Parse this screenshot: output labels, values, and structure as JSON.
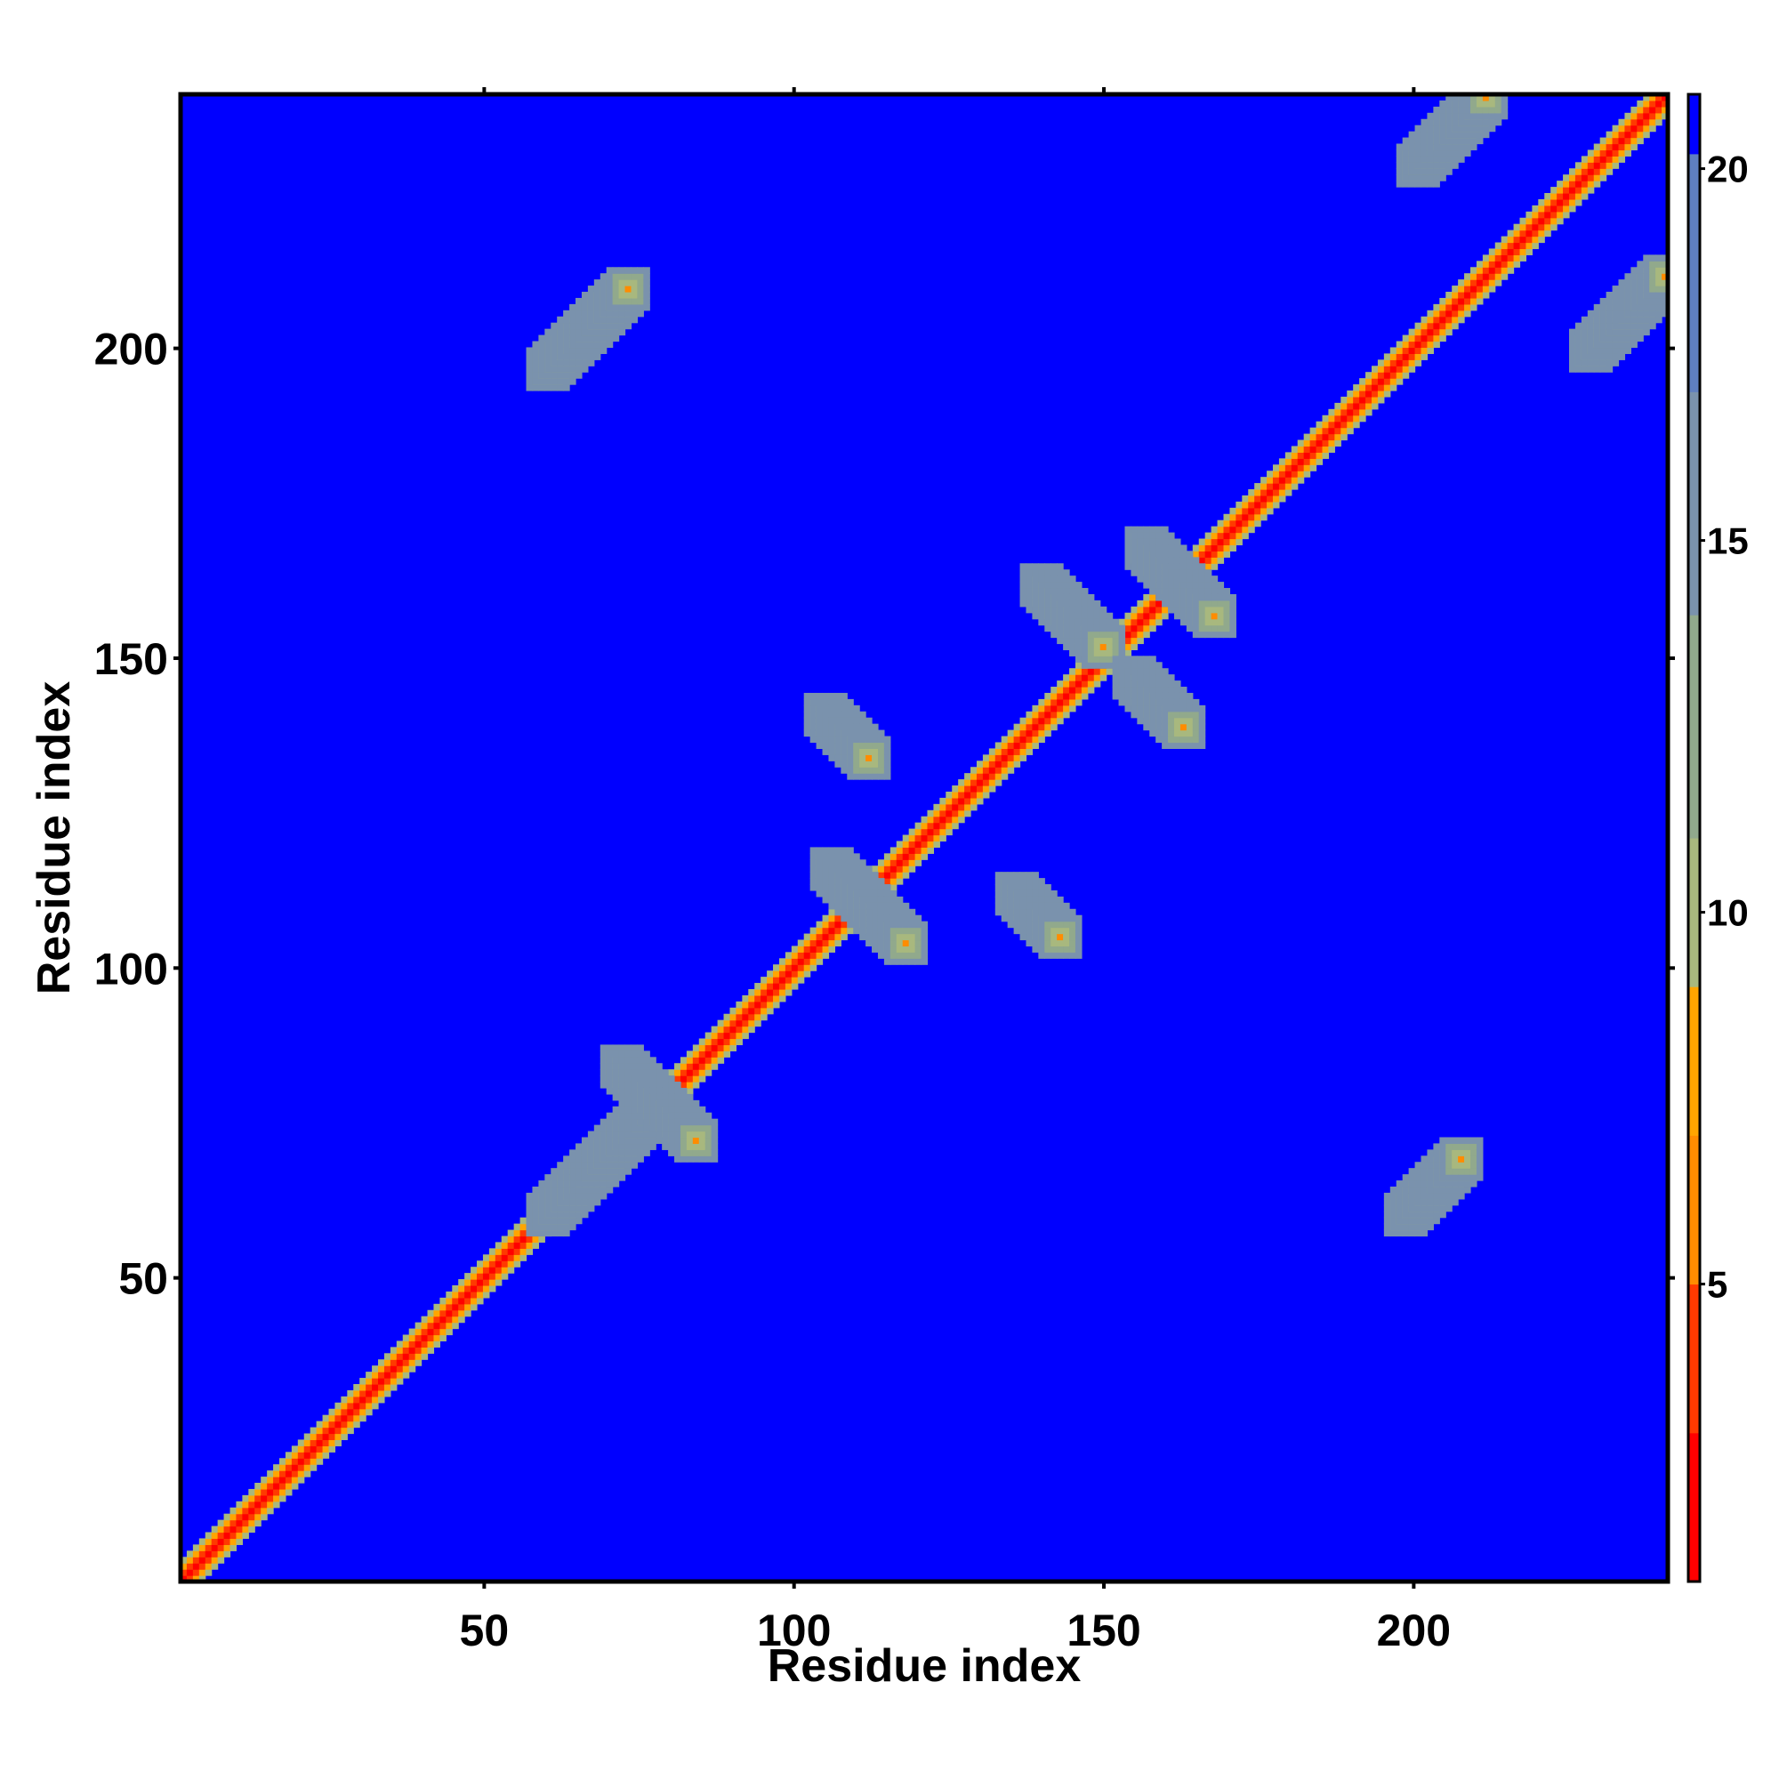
{
  "chart_data": {
    "type": "heatmap",
    "xlabel": "Residue index",
    "ylabel": "Residue index",
    "n_residues": 241,
    "xlim": [
      1,
      241
    ],
    "ylim": [
      1,
      241
    ],
    "xticks": [
      50,
      100,
      150,
      200
    ],
    "yticks": [
      50,
      100,
      150,
      200
    ],
    "colorbar": {
      "range": [
        1,
        21
      ],
      "ticks": [
        5,
        10,
        15,
        20
      ],
      "colors": [
        {
          "max": 3,
          "color": "#ff0000"
        },
        {
          "max": 5,
          "color": "#ff3a00"
        },
        {
          "max": 7,
          "color": "#ff8c00"
        },
        {
          "max": 9,
          "color": "#ffa500"
        },
        {
          "max": 11,
          "color": "#a8b87e"
        },
        {
          "max": 14,
          "color": "#91a98c"
        },
        {
          "max": 17,
          "color": "#7a92ad"
        },
        {
          "max": 20.2,
          "color": "#5f7fc0"
        },
        {
          "max": 21,
          "color": "#0000ff"
        }
      ]
    },
    "background_value": 21,
    "background_color": "#0000ff",
    "diagonal_band_halfwidth": 3,
    "contact_clusters": [
      {
        "x": [
          60,
          73
        ],
        "y": [
          197,
          210
        ],
        "value": 6
      },
      {
        "x": [
          60,
          78
        ],
        "y": [
          60,
          78
        ],
        "value": 6
      },
      {
        "x": [
          72,
          84
        ],
        "y": [
          84,
          72
        ],
        "value": 6
      },
      {
        "x": [
          106,
          118
        ],
        "y": [
          116,
          104
        ],
        "value": 6
      },
      {
        "x": [
          105,
          112
        ],
        "y": [
          141,
          134
        ],
        "value": 6
      },
      {
        "x": [
          136,
          143
        ],
        "y": [
          112,
          105
        ],
        "value": 6
      },
      {
        "x": [
          140,
          150
        ],
        "y": [
          162,
          152
        ],
        "value": 6
      },
      {
        "x": [
          155,
          163
        ],
        "y": [
          147,
          139
        ],
        "value": 6
      },
      {
        "x": [
          157,
          168
        ],
        "y": [
          168,
          157
        ],
        "value": 6
      },
      {
        "x": [
          199,
          208
        ],
        "y": [
          60,
          69
        ],
        "value": 6
      },
      {
        "x": [
          201,
          212
        ],
        "y": [
          230,
          241
        ],
        "value": 6
      },
      {
        "x": [
          229,
          241
        ],
        "y": [
          200,
          212
        ],
        "value": 6
      }
    ]
  }
}
